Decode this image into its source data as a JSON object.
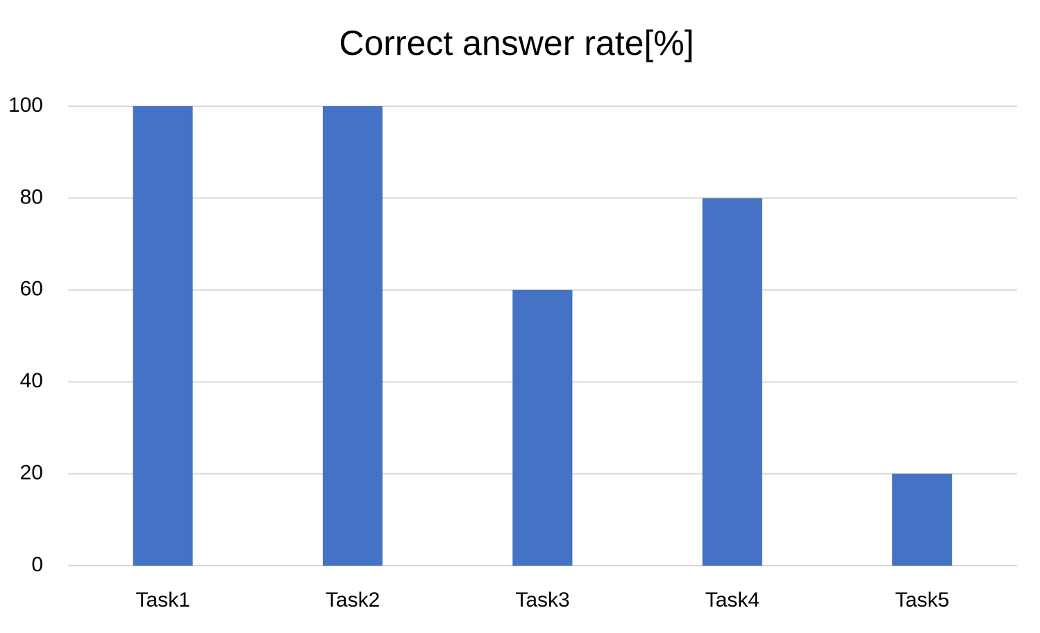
{
  "chart_data": {
    "type": "bar",
    "title": "Correct answer rate[%]",
    "categories": [
      "Task1",
      "Task2",
      "Task3",
      "Task4",
      "Task5"
    ],
    "values": [
      100,
      100,
      60,
      80,
      20
    ],
    "color": "#4472c4",
    "ylim": [
      0,
      100
    ],
    "yticks": [
      0,
      20,
      40,
      60,
      80,
      100
    ],
    "grid": true
  }
}
